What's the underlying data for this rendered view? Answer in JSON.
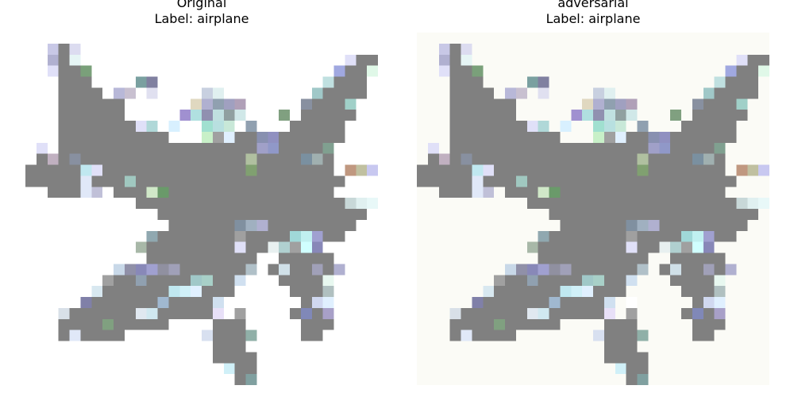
{
  "panels": [
    {
      "title": "Original",
      "label_text": "Label: airplane"
    },
    {
      "title": "adversarial",
      "label_text": "Label: airplane"
    }
  ],
  "colors": {
    "background": "#ffffff",
    "plane_gray": "#808080",
    "noise_tint": "#fbfbf6"
  }
}
